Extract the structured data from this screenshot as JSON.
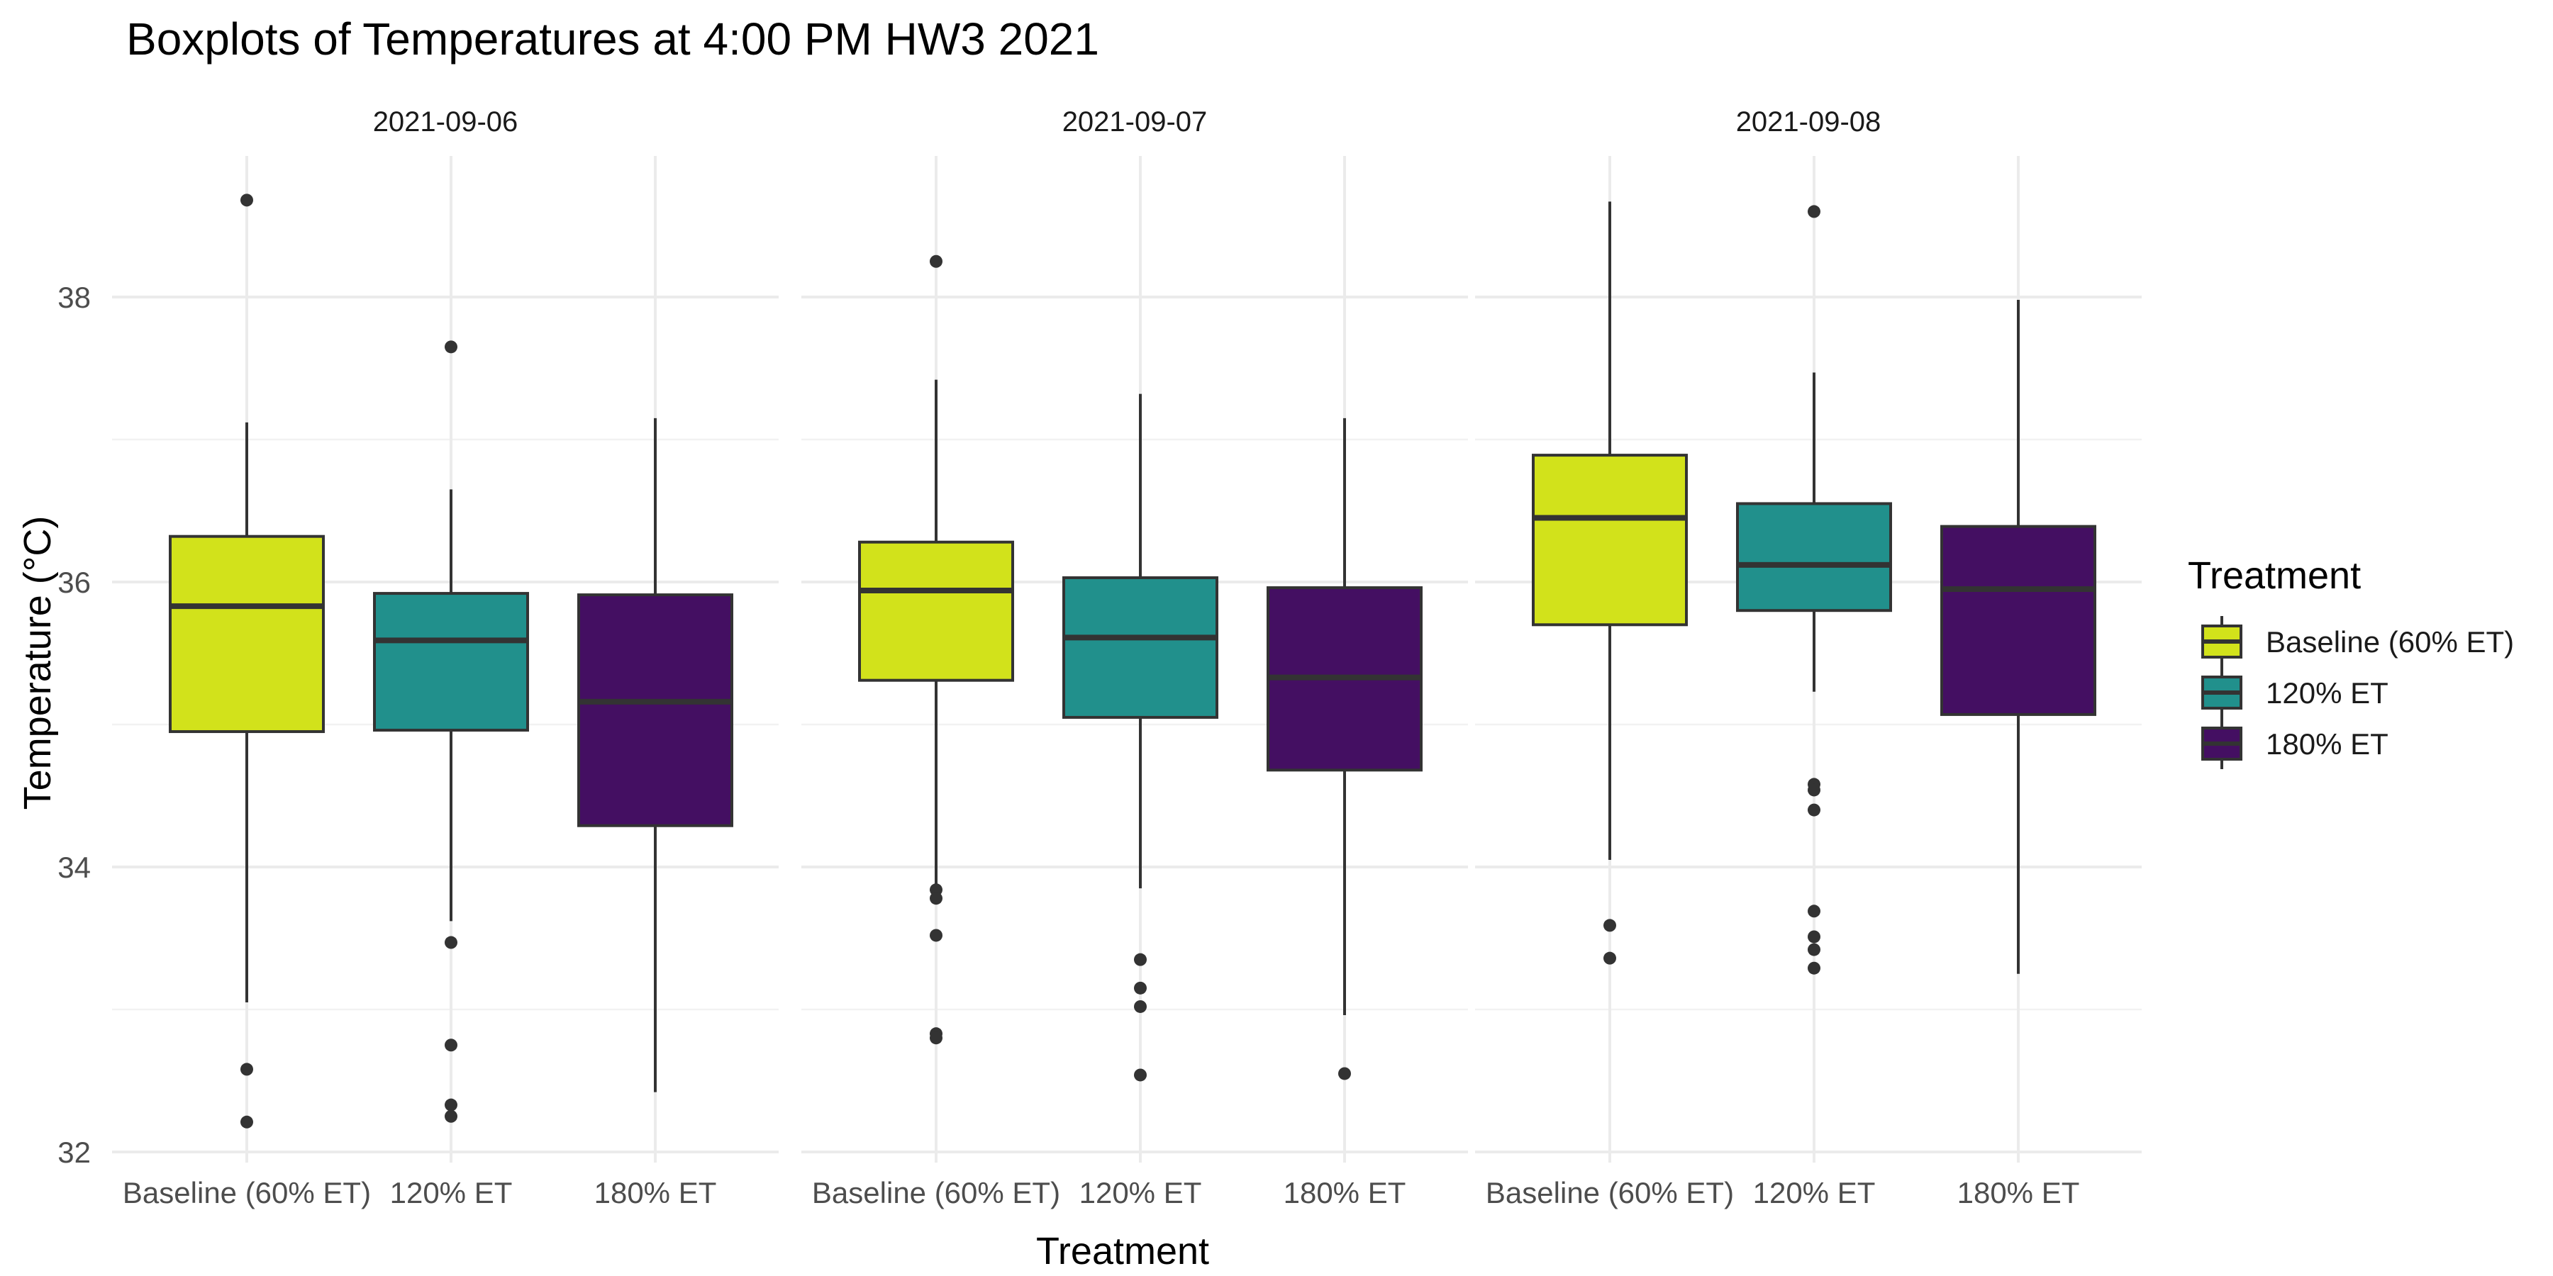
{
  "chart_data": {
    "type": "boxplot",
    "title": "Boxplots of Temperatures at 4:00 PM HW3 2021",
    "xlabel": "Treatment",
    "ylabel": "Temperature (°C)",
    "ylim": [
      32,
      39
    ],
    "yticks": [
      32,
      34,
      36,
      38
    ],
    "grid": true,
    "legend": {
      "title": "Treatment",
      "placement": "right",
      "items": [
        {
          "label": "Baseline (60% ET)",
          "color": "#d2e21b"
        },
        {
          "label": "120% ET",
          "color": "#21908c"
        },
        {
          "label": "180% ET",
          "color": "#440f62"
        }
      ]
    },
    "categories": [
      "Baseline (60% ET)",
      "120% ET",
      "180% ET"
    ],
    "colors": [
      "#d2e21b",
      "#21908c",
      "#440f62"
    ],
    "panels": [
      {
        "facet": "2021-09-06",
        "boxes": [
          {
            "category": "Baseline (60% ET)",
            "whisker_low": 33.05,
            "q1": 34.95,
            "median": 35.83,
            "q3": 36.32,
            "whisker_high": 37.12,
            "outliers": [
              38.68,
              32.58,
              32.21
            ]
          },
          {
            "category": "120% ET",
            "whisker_low": 33.62,
            "q1": 34.96,
            "median": 35.59,
            "q3": 35.92,
            "whisker_high": 36.65,
            "outliers": [
              37.65,
              33.47,
              32.75,
              32.33,
              32.25
            ]
          },
          {
            "category": "180% ET",
            "whisker_low": 32.42,
            "q1": 34.29,
            "median": 35.16,
            "q3": 35.91,
            "whisker_high": 37.15,
            "outliers": []
          }
        ]
      },
      {
        "facet": "2021-09-07",
        "boxes": [
          {
            "category": "Baseline (60% ET)",
            "whisker_low": 33.87,
            "q1": 35.31,
            "median": 35.94,
            "q3": 36.28,
            "whisker_high": 37.42,
            "outliers": [
              38.25,
              33.84,
              33.78,
              33.52,
              32.83,
              32.8
            ]
          },
          {
            "category": "120% ET",
            "whisker_low": 33.85,
            "q1": 35.05,
            "median": 35.61,
            "q3": 36.03,
            "whisker_high": 37.32,
            "outliers": [
              33.35,
              33.15,
              33.02,
              32.54
            ]
          },
          {
            "category": "180% ET",
            "whisker_low": 32.96,
            "q1": 34.68,
            "median": 35.33,
            "q3": 35.96,
            "whisker_high": 37.15,
            "outliers": [
              32.55
            ]
          }
        ]
      },
      {
        "facet": "2021-09-08",
        "boxes": [
          {
            "category": "Baseline (60% ET)",
            "whisker_low": 34.05,
            "q1": 35.7,
            "median": 36.45,
            "q3": 36.89,
            "whisker_high": 38.67,
            "outliers": [
              33.59,
              33.36
            ]
          },
          {
            "category": "120% ET",
            "whisker_low": 35.23,
            "q1": 35.8,
            "median": 36.12,
            "q3": 36.55,
            "whisker_high": 37.47,
            "outliers": [
              38.6,
              34.58,
              34.54,
              34.4,
              33.69,
              33.51,
              33.42,
              33.29
            ]
          },
          {
            "category": "180% ET",
            "whisker_low": 33.25,
            "q1": 35.07,
            "median": 35.95,
            "q3": 36.39,
            "whisker_high": 37.98,
            "outliers": []
          }
        ]
      }
    ]
  }
}
